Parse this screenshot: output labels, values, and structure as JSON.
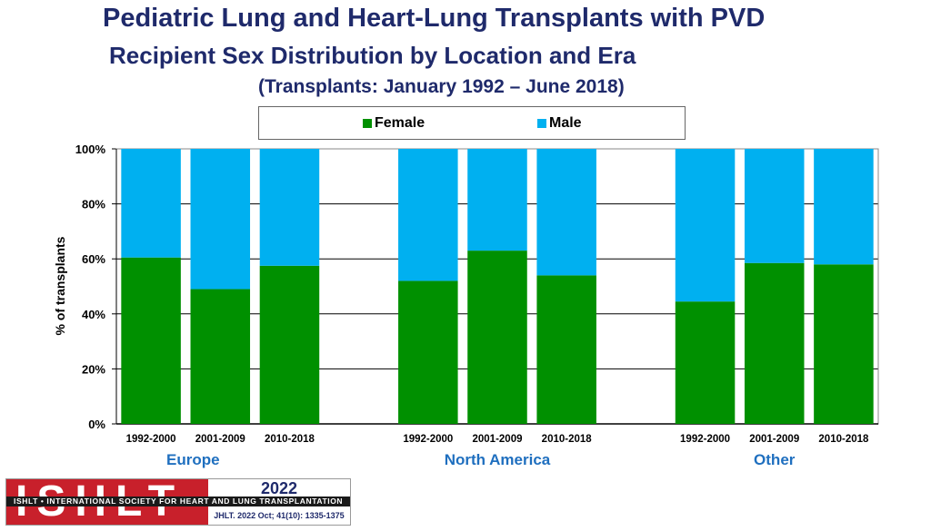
{
  "header": {
    "title": "Pediatric Lung and Heart-Lung Transplants with PVD",
    "subtitle": "Recipient Sex Distribution by Location and Era",
    "date_range": "(Transplants: January 1992 – June 2018)"
  },
  "colors": {
    "female": "#009000",
    "male": "#00b0f0",
    "title": "#1f2a6b",
    "group_label": "#1f6fbf"
  },
  "chart_data": {
    "type": "bar",
    "stacked": true,
    "ylabel": "% of transplants",
    "ylim": [
      0,
      100
    ],
    "yticks": [
      "0%",
      "20%",
      "40%",
      "60%",
      "80%",
      "100%"
    ],
    "grid": true,
    "legend": {
      "placement": "top-center",
      "entries": [
        "Female",
        "Male"
      ]
    },
    "groups": [
      {
        "label": "Europe",
        "categories": [
          "1992-2000",
          "2001-2009",
          "2010-2018"
        ]
      },
      {
        "label": "North America",
        "categories": [
          "1992-2000",
          "2001-2009",
          "2010-2018"
        ]
      },
      {
        "label": "Other",
        "categories": [
          "1992-2000",
          "2001-2009",
          "2010-2018"
        ]
      }
    ],
    "series": [
      {
        "name": "Female",
        "values": [
          60.5,
          49,
          57.5,
          52,
          63,
          54,
          44.5,
          58.5,
          58
        ]
      },
      {
        "name": "Male",
        "values": [
          39.5,
          51,
          42.5,
          48,
          37,
          46,
          55.5,
          41.5,
          42
        ]
      }
    ]
  },
  "footer": {
    "logo_letters": "ISHLT",
    "logo_strip": "ISHLT • INTERNATIONAL SOCIETY FOR HEART AND LUNG TRANSPLANTATION",
    "year": "2022",
    "citation": "JHLT. 2022 Oct; 41(10): 1335-1375"
  }
}
